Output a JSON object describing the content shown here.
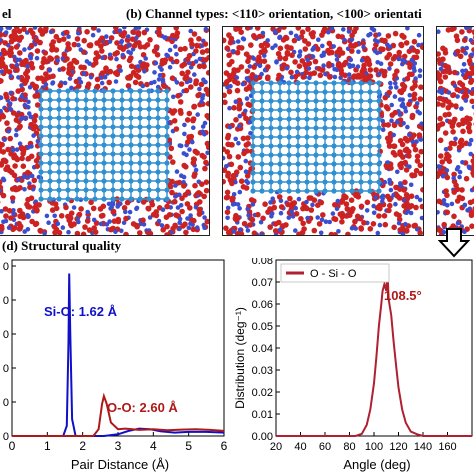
{
  "labels": {
    "a_fragment": "el",
    "b_title": "(b) Channel types: <110> orientation, <100> orientati",
    "d_title": "(d) Structural  quality"
  },
  "colors": {
    "oxygen": "#cc2222",
    "silicon": "#3a4fd0",
    "crystal": "#2f8fd0",
    "sio_line": "#1010c8",
    "oo_line": "#b01818",
    "angle_line": "#b02030"
  },
  "icons": {
    "arrow": "down-arrow-icon"
  },
  "chart_data": [
    {
      "type": "line",
      "title": "",
      "xlabel": "Pair Distance (Å)",
      "ylabel": "",
      "xlim": [
        0,
        6
      ],
      "x_ticks": [
        "0",
        "1",
        "2",
        "3",
        "4",
        "5",
        "6"
      ],
      "y_tick_fragments": [
        "0",
        "0",
        "0",
        "0",
        "0",
        "0"
      ],
      "annotations": [
        "Si-O: 1.62 Å",
        "O-O: 2.60 Å"
      ],
      "series": [
        {
          "color": "#1010c8",
          "x": [
            0,
            1.45,
            1.55,
            1.6,
            1.62,
            1.65,
            1.7,
            1.8,
            2.0,
            2.6,
            3.0,
            3.3,
            3.6,
            3.9,
            4.2,
            4.6,
            5.0,
            5.5,
            6.0
          ],
          "y": [
            0,
            0,
            0.3,
            2.8,
            4.8,
            3.0,
            0.5,
            0,
            0,
            0,
            0.05,
            0.15,
            0.22,
            0.2,
            0.14,
            0.1,
            0.12,
            0.12,
            0.1
          ]
        },
        {
          "color": "#b01818",
          "x": [
            0,
            2.3,
            2.45,
            2.55,
            2.6,
            2.68,
            2.8,
            3.0,
            3.2,
            3.6,
            4.0,
            4.4,
            4.8,
            5.2,
            5.6,
            6.0
          ],
          "y": [
            0,
            0,
            0.2,
            0.95,
            1.18,
            0.95,
            0.4,
            0.2,
            0.22,
            0.18,
            0.2,
            0.17,
            0.19,
            0.2,
            0.18,
            0.15
          ]
        }
      ]
    },
    {
      "type": "line",
      "title": "",
      "xlabel": "Angle (deg)",
      "ylabel": "Distribution (deg⁻¹)",
      "xlim": [
        20,
        180
      ],
      "ylim": [
        0,
        0.08
      ],
      "x_ticks": [
        "20",
        "40",
        "60",
        "80",
        "100",
        "120",
        "140",
        "160"
      ],
      "y_ticks": [
        "0.00",
        "0.01",
        "0.02",
        "0.03",
        "0.04",
        "0.05",
        "0.06",
        "0.07",
        "0.08"
      ],
      "legend": {
        "placement": "top-left",
        "entries": [
          "O - Si - O"
        ]
      },
      "annotations": [
        "108.5°"
      ],
      "series": [
        {
          "name": "O - Si - O",
          "color": "#b02030",
          "x": [
            20,
            85,
            90,
            94,
            97,
            100,
            102,
            104,
            106,
            107,
            108.5,
            110,
            111,
            112,
            114,
            116,
            118,
            120,
            123,
            126,
            130,
            135,
            140,
            180
          ],
          "y": [
            0,
            0,
            0.001,
            0.005,
            0.012,
            0.024,
            0.036,
            0.05,
            0.06,
            0.066,
            0.069,
            0.066,
            0.074,
            0.062,
            0.055,
            0.043,
            0.032,
            0.022,
            0.012,
            0.006,
            0.002,
            0.0008,
            0,
            0
          ]
        }
      ]
    }
  ]
}
